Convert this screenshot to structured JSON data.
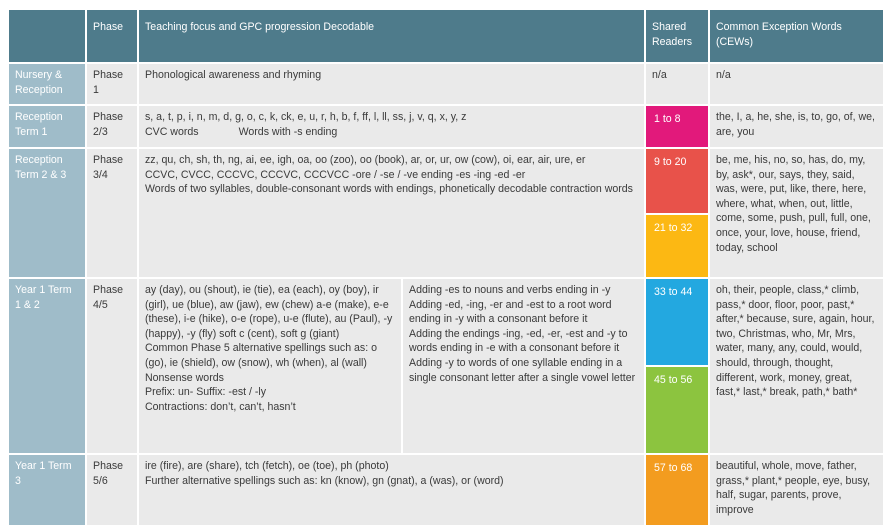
{
  "headers": {
    "phase": "Phase",
    "focus": "Teaching focus and GPC progression Decodable",
    "readers": "Shared Readers",
    "cews": "Common Exception Words (CEWs)"
  },
  "rows": [
    {
      "stage": "Nursery & Reception",
      "phase": "Phase 1",
      "focus": [
        "Phonological awareness and rhyming"
      ],
      "readers": "n/a",
      "cews": "n/a"
    },
    {
      "stage": "Reception Term 1",
      "phase": "Phase 2/3",
      "focus": [
        "s, a, t, p, i, n, m, d, g, o, c, k, ck, e, u, r, h, b, f, ff, l, ll, ss, j, v, q, x, y, z",
        "CVC words",
        "Words with -s ending"
      ],
      "readers": "1 to 8",
      "cews": "the, I, a, he, she, is, to, go, of, we, are, you"
    },
    {
      "stage": "Reception Term 2 & 3",
      "phase": "Phase 3/4",
      "focus": [
        "zz, qu, ch, sh, th, ng, ai, ee, igh, oa, oo (zoo), oo (book), ar, or, ur, ow (cow), oi, ear, air, ure, er",
        "CCVC, CVCC, CCCVC, CCCVC, CCCVCC -ore / -se / -ve ending -es -ing -ed -er",
        "Words of two syllables, double-consonant words with endings, phonetically decodable contraction words"
      ],
      "readers": [
        "9 to 20",
        "21 to 32"
      ],
      "cews": "be, me, his, no, so, has, do, my, by, ask*, our, says, they, said, was, were, put, like, there, here, where, what, when, out, little, come, some, push, pull, full, one, once, your, love, house, friend, today, school"
    },
    {
      "stage": "Year 1 Term 1 & 2",
      "phase": "Phase 4/5",
      "focus_left": [
        "ay (day), ou (shout), ie (tie), ea (each), oy (boy), ir (girl), ue (blue), aw (jaw), ew (chew) a-e (make), e-e (these), i-e (hike), o-e (rope), u-e (flute), au (Paul), -y (happy), -y (fly) soft c (cent), soft g (giant)",
        "Common Phase 5 alternative spellings such as: o (go), ie (shield), ow (snow), wh (when), al (wall)",
        "Nonsense words",
        "Prefix: un- Suffix: -est / -ly",
        "Contractions: don’t, can’t, hasn’t"
      ],
      "focus_right": [
        "Adding -es to nouns and verbs ending in -y",
        "Adding -ed, -ing, -er and -est to a root word ending in -y with a consonant before it",
        "Adding the endings -ing, -ed, -er, -est and -y to words ending in -e with a consonant before it",
        "Adding -y to words of one syllable ending in a single consonant letter after a single vowel letter"
      ],
      "readers": [
        "33 to 44",
        "45 to 56"
      ],
      "cews": "oh, their, people, class,* climb, pass,* door, floor, poor, past,* after,* because, sure, again, hour, two, Christmas, who, Mr, Mrs, water, many, any, could, would, should, through, thought, different, work, money, great, fast,* last,* break, path,* bath*"
    },
    {
      "stage": "Year 1 Term 3",
      "phase": "Phase 5/6",
      "focus": [
        "ire (fire), are (share), tch (fetch), oe (toe), ph (photo)",
        "Further alternative spellings such as: kn (know), gn (gnat), a (was), or (word)"
      ],
      "readers": "57 to 68",
      "cews": "beautiful, whole, move, father, grass,* plant,* people, eye, busy, half, sugar, parents, prove, improve"
    }
  ],
  "colors": {
    "header_bg": "#4e7b8b",
    "stage_bg": "#9fbcc9",
    "body_bg": "#eaeaea",
    "reader_1_8": "#e2197b",
    "reader_9_20": "#e8524a",
    "reader_21_32": "#fcb813",
    "reader_33_44": "#23a8e0",
    "reader_45_56": "#8cc43f",
    "reader_57_68": "#f39c1f"
  }
}
